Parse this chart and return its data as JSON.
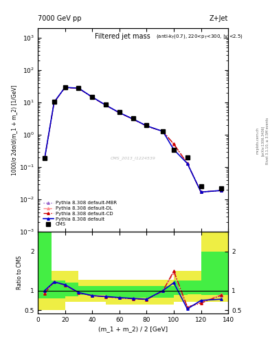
{
  "title_top": "7000 GeV pp",
  "title_right": "Z+Jet",
  "plot_title": "Filtered jet mass",
  "plot_subtitle": "(anti-k_{T}(0.7), 220<p_{T}<300, |y|<2.5)",
  "xlabel": "(m_1 + m_2) / 2 [GeV]",
  "ylabel_main": "1000/σ 2dσ/d(m_1 + m_2) [1/GeV]",
  "ylabel_ratio": "Ratio to CMS",
  "watermark": "CMS_2013_I1224539",
  "rivet_text": "Rivet 3.1.10, ≥ 3.5M events",
  "arxiv_text": "[arXiv:1306.3436]",
  "mcplots_text": "mcplots.cern.ch",
  "cms_x": [
    5,
    12,
    20,
    30,
    40,
    50,
    60,
    70,
    80,
    92,
    100,
    110,
    120,
    135
  ],
  "cms_y": [
    0.19,
    10.5,
    30.0,
    28.0,
    15.0,
    8.5,
    5.0,
    3.2,
    2.0,
    1.3,
    0.35,
    0.2,
    0.025,
    0.022
  ],
  "pythia_x": [
    5,
    12,
    20,
    30,
    40,
    50,
    60,
    70,
    80,
    92,
    100,
    110,
    120,
    135
  ],
  "pythia_default_y": [
    0.185,
    10.3,
    29.5,
    27.8,
    14.8,
    8.3,
    4.85,
    3.1,
    1.9,
    1.28,
    0.35,
    0.13,
    0.017,
    0.019
  ],
  "pythia_cd_y": [
    0.18,
    10.1,
    29.2,
    27.5,
    14.6,
    8.2,
    4.8,
    3.05,
    1.88,
    1.27,
    0.525,
    0.13,
    0.017,
    0.019
  ],
  "pythia_dl_y": [
    0.182,
    10.2,
    29.3,
    27.6,
    14.7,
    8.25,
    4.82,
    3.07,
    1.89,
    1.275,
    0.51,
    0.132,
    0.017,
    0.019
  ],
  "pythia_mbr_y": [
    0.183,
    10.15,
    29.4,
    27.7,
    14.75,
    8.28,
    4.83,
    3.08,
    1.895,
    1.28,
    0.52,
    0.131,
    0.0172,
    0.0192
  ],
  "ratio_x": [
    5,
    12,
    20,
    30,
    40,
    50,
    60,
    70,
    80,
    92,
    100,
    110,
    120,
    135
  ],
  "ratio_default": [
    1.0,
    1.22,
    1.15,
    0.95,
    0.87,
    0.85,
    0.82,
    0.8,
    0.78,
    1.0,
    1.2,
    0.53,
    0.75,
    0.78
  ],
  "ratio_cd": [
    0.93,
    1.22,
    1.14,
    0.945,
    0.87,
    0.84,
    0.81,
    0.79,
    0.77,
    0.99,
    1.5,
    0.58,
    0.68,
    0.88
  ],
  "ratio_dl": [
    0.95,
    1.22,
    1.14,
    0.942,
    0.87,
    0.845,
    0.815,
    0.795,
    0.775,
    0.995,
    1.45,
    0.57,
    0.7,
    0.9
  ],
  "ratio_mbr": [
    0.97,
    1.22,
    1.14,
    0.942,
    0.87,
    0.845,
    0.815,
    0.795,
    0.775,
    0.998,
    1.48,
    0.565,
    0.71,
    0.87
  ],
  "band_x_edges": [
    0,
    10,
    20,
    30,
    40,
    50,
    60,
    70,
    80,
    90,
    100,
    110,
    120,
    130,
    140
  ],
  "band_green_lo": [
    0.8,
    0.8,
    0.85,
    0.88,
    0.88,
    0.82,
    0.82,
    0.82,
    0.82,
    0.82,
    0.88,
    0.9,
    0.88,
    0.88,
    0.88
  ],
  "band_green_hi": [
    2.5,
    1.25,
    1.2,
    1.12,
    1.12,
    1.12,
    1.12,
    1.12,
    1.12,
    1.12,
    1.25,
    1.25,
    2.0,
    2.0,
    2.0
  ],
  "band_yellow_lo": [
    0.5,
    0.5,
    0.72,
    0.72,
    0.72,
    0.65,
    0.65,
    0.65,
    0.65,
    0.65,
    0.72,
    0.72,
    0.72,
    0.72,
    0.72
  ],
  "band_yellow_hi": [
    2.5,
    1.5,
    1.5,
    1.28,
    1.28,
    1.28,
    1.28,
    1.28,
    1.28,
    1.28,
    1.5,
    1.5,
    2.5,
    2.5,
    2.5
  ],
  "color_default": "#0000cc",
  "color_cd": "#cc0000",
  "color_dl": "#ff8888",
  "color_mbr": "#9966cc",
  "color_cms": "#000000",
  "color_green": "#44ee44",
  "color_yellow": "#eeee44",
  "xlim": [
    0,
    140
  ],
  "ylim_main": [
    0.001,
    2000
  ],
  "ylim_ratio": [
    0.42,
    2.5
  ],
  "ratio_yticks": [
    0.5,
    1.0,
    2.0
  ],
  "ratio_yticklabels": [
    "0.5",
    "1",
    "2"
  ]
}
